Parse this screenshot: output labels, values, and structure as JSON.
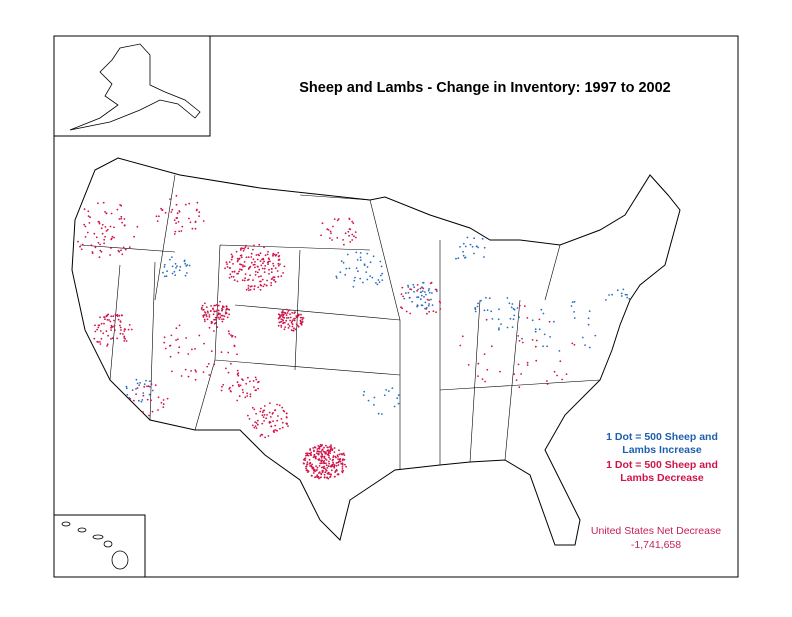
{
  "title": "Sheep and Lambs - Change in Inventory:  1997 to 2002",
  "legend": {
    "increase": [
      "1 Dot = 500 Sheep and",
      "Lambs Increase"
    ],
    "decrease": [
      "1 Dot = 500 Sheep and",
      "Lambs Decrease"
    ]
  },
  "net": {
    "label": "United States Net Decrease",
    "value": "-1,741,658"
  }
}
